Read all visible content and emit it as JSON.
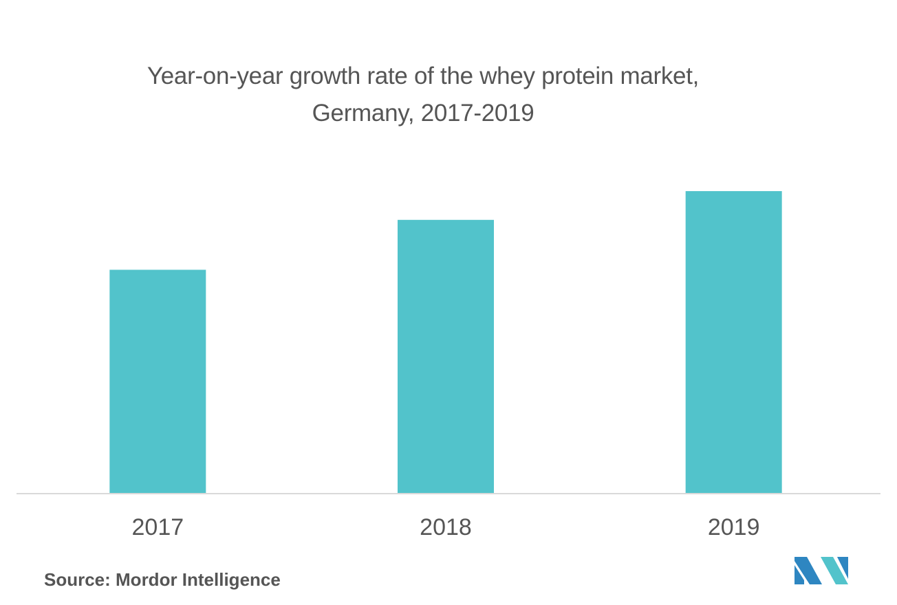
{
  "chart_data": {
    "type": "bar",
    "title_line1": "Year-on-year growth rate of the whey protein market,",
    "title_line2": "Germany, 2017-2019",
    "categories": [
      "2017",
      "2018",
      "2019"
    ],
    "values": [
      74,
      90.5,
      100
    ],
    "ylim": [
      0,
      100
    ],
    "xlabel": "",
    "ylabel": "",
    "grid": false,
    "bar_color": "#52C3CB",
    "axis_color": "#D9D9D9"
  },
  "source": "Source: Mordor Intelligence",
  "logo": {
    "icon": "mordor-intelligence-logo-icon",
    "colors": [
      "#2E86C1",
      "#52C3CB"
    ]
  }
}
